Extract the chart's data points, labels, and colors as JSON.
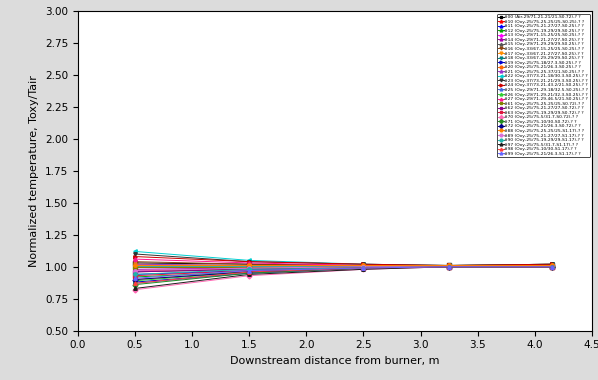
{
  "x_points": [
    0.5,
    1.5,
    2.5,
    3.25,
    4.15
  ],
  "xlabel": "Downstream distance from burner, m",
  "ylabel": "Normalized temperature, Toxy/Tair",
  "xlim": [
    0.0,
    4.5
  ],
  "ylim": [
    0.5,
    3.0
  ],
  "xticks": [
    0.0,
    0.5,
    1.0,
    1.5,
    2.0,
    2.5,
    3.0,
    3.5,
    4.0,
    4.5
  ],
  "yticks": [
    0.5,
    0.75,
    1.0,
    1.25,
    1.5,
    1.75,
    2.0,
    2.25,
    2.5,
    2.75,
    3.0
  ],
  "bg_color": "#DCDCDC",
  "series": [
    {
      "label": "#00 (Air-29/71-21-21/21-S0.72)-? ?",
      "color": "#000000",
      "marker": "s",
      "values": [
        1.03,
        1.02,
        1.01,
        1.01,
        1.01
      ]
    },
    {
      "label": "#10 (Oxy-25/75-25-25/25-S0.25)-? ?",
      "color": "#FF0000",
      "marker": "^",
      "values": [
        0.97,
        0.98,
        0.99,
        1.0,
        1.0
      ]
    },
    {
      "label": "#11 (Oxy-25/75-21-27/27-S0.25)-? ?",
      "color": "#0000FF",
      "marker": "^",
      "values": [
        0.94,
        0.97,
        0.99,
        1.0,
        1.0
      ]
    },
    {
      "label": "#12 (Oxy-25/75-19-29/29-S0.25)-? ?",
      "color": "#00AA00",
      "marker": "^",
      "values": [
        0.92,
        0.96,
        0.99,
        1.0,
        1.0
      ]
    },
    {
      "label": "#13 (Oxy-29/71-15-25/25-S0.25)-? ?",
      "color": "#FF00FF",
      "marker": "^",
      "values": [
        1.0,
        1.0,
        1.0,
        1.0,
        1.0
      ]
    },
    {
      "label": "#14 (Oxy-29/71-21-27/27-S0.25)-? ?",
      "color": "#AA00AA",
      "marker": "^",
      "values": [
        0.98,
        0.99,
        1.0,
        1.0,
        1.0
      ]
    },
    {
      "label": "#15 (Oxy-29/71-29-29/29-S0.25)-? ?",
      "color": "#555555",
      "marker": "^",
      "values": [
        0.96,
        0.98,
        0.99,
        1.0,
        1.0
      ]
    },
    {
      "label": "#16 (Oxy-33/67-15-25/25-S0.25)-? ?",
      "color": "#8B4513",
      "marker": "v",
      "values": [
        1.04,
        1.02,
        1.01,
        1.01,
        1.02
      ]
    },
    {
      "label": "#17 (Oxy-33/67-21-27/27-S0.25)-? ?",
      "color": "#FF8C00",
      "marker": "v",
      "values": [
        1.02,
        1.01,
        1.01,
        1.01,
        1.01
      ]
    },
    {
      "label": "#18 (Oxy-33/67-29-29/29-S0.25)-? ?",
      "color": "#008080",
      "marker": "v",
      "values": [
        1.0,
        1.0,
        1.0,
        1.0,
        1.01
      ]
    },
    {
      "label": "#19 (Oxy-25/75-18/27.3-S0.25)-? ?",
      "color": "#0000CD",
      "marker": ">",
      "values": [
        0.88,
        0.95,
        0.99,
        1.0,
        1.0
      ]
    },
    {
      "label": "#20 (Oxy-25/75-21/26.3-S0.25)-? ?",
      "color": "#FF6600",
      "marker": "o",
      "values": [
        0.9,
        0.96,
        0.99,
        1.0,
        1.0
      ]
    },
    {
      "label": "#21 (Oxy-25/75-25-37/21-S0.25)-? ?",
      "color": "#9932CC",
      "marker": "^",
      "values": [
        1.02,
        1.01,
        1.01,
        1.01,
        1.01
      ]
    },
    {
      "label": "#22 (Oxy-37/73-21-18/30.3-S0.25)-? ?",
      "color": "#00CED1",
      "marker": "<",
      "values": [
        1.12,
        1.05,
        1.02,
        1.01,
        1.02
      ]
    },
    {
      "label": "#23 (Oxy-37/73-21-21/29.3-S0.25)-? ?",
      "color": "#333333",
      "marker": "v",
      "values": [
        1.1,
        1.04,
        1.02,
        1.01,
        1.02
      ]
    },
    {
      "label": "#24 (Oxy-37/73-21-43.2/21-S0.25)-? ?",
      "color": "#CC0000",
      "marker": ">",
      "values": [
        1.08,
        1.04,
        1.02,
        1.01,
        1.02
      ]
    },
    {
      "label": "#25 (Oxy-29/71-29-18/32.5-S0.25)-? ?",
      "color": "#4169E1",
      "marker": "^",
      "values": [
        0.87,
        0.95,
        0.99,
        1.0,
        1.0
      ]
    },
    {
      "label": "#26 (Oxy-29/71-29-21/32.3-S0.25)-? ?",
      "color": "#32CD32",
      "marker": "^",
      "values": [
        0.89,
        0.96,
        0.99,
        1.0,
        1.0
      ]
    },
    {
      "label": "#27 (Oxy-29/71-29-46.5/21-S0.25)-? ?",
      "color": "#FF1493",
      "marker": "^",
      "values": [
        1.06,
        1.03,
        1.01,
        1.01,
        1.01
      ]
    },
    {
      "label": "#61 (Oxy-25/75-25-25/25-S0.72)-? ?",
      "color": "#808000",
      "marker": "s",
      "values": [
        1.0,
        1.0,
        1.0,
        1.0,
        1.0
      ]
    },
    {
      "label": "#62 (Oxy-25/75-21-27/27-S0.72)-? ?",
      "color": "#8B008B",
      "marker": "s",
      "values": [
        0.96,
        0.98,
        0.99,
        1.0,
        1.0
      ]
    },
    {
      "label": "#63 (Oxy-25/75-19-29/29-S0.72)-? ?",
      "color": "#DC143C",
      "marker": "s",
      "values": [
        0.93,
        0.97,
        0.99,
        1.0,
        1.0
      ]
    },
    {
      "label": "#70 (Oxy-25/75-5/31.7-S0.72)-? ?",
      "color": "#FF69B4",
      "marker": "D",
      "values": [
        0.82,
        0.93,
        0.98,
        1.0,
        1.0
      ]
    },
    {
      "label": "#71 (Oxy-25/75-10/30-S0.72)-? ?",
      "color": "#228B22",
      "marker": "D",
      "values": [
        0.86,
        0.95,
        0.99,
        1.0,
        1.0
      ]
    },
    {
      "label": "#72 (Oxy-25/75-21/26.3-S0.72)-? ?",
      "color": "#00008B",
      "marker": "D",
      "values": [
        0.9,
        0.96,
        0.99,
        1.0,
        1.0
      ]
    },
    {
      "label": "#88 (Oxy-25/75-25-25/25-S1.17)-? ?",
      "color": "#FF8000",
      "marker": "o",
      "values": [
        1.01,
        1.01,
        1.01,
        1.01,
        1.01
      ]
    },
    {
      "label": "#89 (Oxy-25/75-21-27/27-S1.17)-? ?",
      "color": "#DA70D6",
      "marker": "o",
      "values": [
        0.97,
        0.99,
        1.0,
        1.0,
        1.0
      ]
    },
    {
      "label": "#90 (Oxy-25/75-19-29/29-S1.17)-? ?",
      "color": "#20B2AA",
      "marker": "o",
      "values": [
        0.94,
        0.98,
        0.99,
        1.0,
        1.0
      ]
    },
    {
      "label": "#97 (Oxy-25/75-5/31.7-S1.17)-? ?",
      "color": "#1C1C1C",
      "marker": "^",
      "values": [
        0.83,
        0.94,
        0.98,
        1.0,
        1.0
      ]
    },
    {
      "label": "#98 (Oxy-25/75-10/30-S1.17)-? ?",
      "color": "#FF4040",
      "marker": "^",
      "values": [
        0.87,
        0.96,
        0.99,
        1.0,
        1.0
      ]
    },
    {
      "label": "#99 (Oxy-25/75-21/26.3-S1.17)-? ?",
      "color": "#6666FF",
      "marker": "^",
      "values": [
        0.91,
        0.97,
        0.99,
        1.0,
        1.0
      ]
    }
  ]
}
